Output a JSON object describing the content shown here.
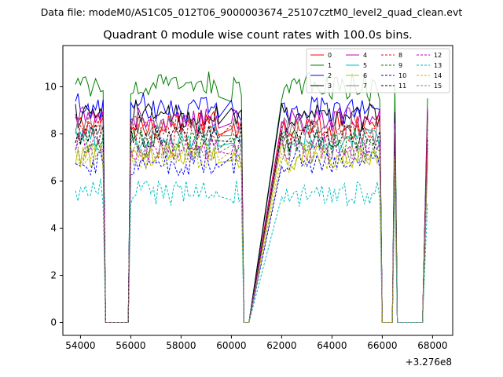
{
  "chart_data": {
    "type": "line",
    "suptitle": "Data file: modeM0/AS1C05_012T06_9000003674_25107cztM0_level2_quad_clean.evt",
    "title": "Quadrant 0 module wise count rates with 100.0s bins.",
    "xlabel": "",
    "ylabel": "",
    "x_offset_label": "+3.276e8",
    "xlim": [
      53300,
      68800
    ],
    "ylim": [
      -0.55,
      11.75
    ],
    "x_ticks": [
      54000,
      56000,
      58000,
      60000,
      62000,
      64000,
      66000,
      68000
    ],
    "x_tick_labels": [
      "54000",
      "56000",
      "58000",
      "60000",
      "62000",
      "64000",
      "66000",
      "68000"
    ],
    "y_ticks": [
      0,
      2,
      4,
      6,
      8,
      10
    ],
    "y_tick_labels": [
      "0",
      "2",
      "4",
      "6",
      "8",
      "10"
    ],
    "legend_position": "top-right",
    "segments": [
      {
        "start": 53800,
        "end": 54900,
        "gap_after_end": 56000
      },
      {
        "start": 56000,
        "end": 59500,
        "gap_after_end": 59600
      },
      {
        "start": 60000,
        "end": 60400,
        "gap_after_end": 60800
      },
      {
        "start": 62000,
        "end": 65900,
        "gap_after_end": 66500
      },
      {
        "start": 66500,
        "end": 66500,
        "gap_after_end": 67700
      },
      {
        "start": 67800,
        "end": 67800,
        "gap_after_end": null
      }
    ],
    "series": [
      {
        "name": "0",
        "color": "#ff0000",
        "dash": "solid",
        "level": 8.4
      },
      {
        "name": "1",
        "color": "#008000",
        "dash": "solid",
        "level": 10.0
      },
      {
        "name": "2",
        "color": "#0000ff",
        "dash": "solid",
        "level": 9.1
      },
      {
        "name": "3",
        "color": "#000000",
        "dash": "solid",
        "level": 8.8
      },
      {
        "name": "4",
        "color": "#bf00bf",
        "dash": "solid",
        "level": 8.6
      },
      {
        "name": "5",
        "color": "#00bfbf",
        "dash": "solid",
        "level": 7.8
      },
      {
        "name": "6",
        "color": "#bfbf00",
        "dash": "solid",
        "level": 7.1
      },
      {
        "name": "7",
        "color": "#808080",
        "dash": "solid",
        "level": 8.2
      },
      {
        "name": "8",
        "color": "#ff0000",
        "dash": "dashed",
        "level": 8.1
      },
      {
        "name": "9",
        "color": "#008000",
        "dash": "dashed",
        "level": 7.6
      },
      {
        "name": "10",
        "color": "#0000ff",
        "dash": "dashed",
        "level": 6.8
      },
      {
        "name": "11",
        "color": "#000000",
        "dash": "dashed",
        "level": 7.9
      },
      {
        "name": "12",
        "color": "#bf00bf",
        "dash": "dashed",
        "level": 7.4
      },
      {
        "name": "13",
        "color": "#00bfbf",
        "dash": "dashed",
        "level": 5.5
      },
      {
        "name": "14",
        "color": "#bfbf00",
        "dash": "dashed",
        "level": 7.0
      },
      {
        "name": "15",
        "color": "#808080",
        "dash": "dashed",
        "level": 7.3
      }
    ]
  }
}
